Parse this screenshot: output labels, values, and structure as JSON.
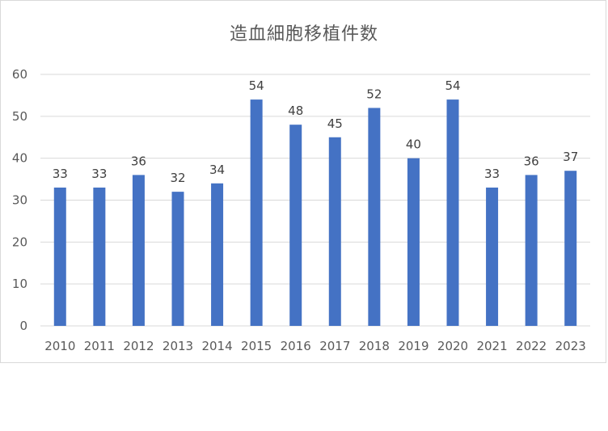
{
  "chart_data": {
    "type": "bar",
    "title": "造血細胞移植件数",
    "xlabel": "",
    "ylabel": "",
    "categories": [
      "2010",
      "2011",
      "2012",
      "2013",
      "2014",
      "2015",
      "2016",
      "2017",
      "2018",
      "2019",
      "2020",
      "2021",
      "2022",
      "2023"
    ],
    "values": [
      33,
      33,
      36,
      32,
      34,
      54,
      48,
      45,
      52,
      40,
      54,
      33,
      36,
      37
    ],
    "ylim": [
      0,
      60
    ],
    "yticks": [
      0,
      10,
      20,
      30,
      40,
      50,
      60
    ],
    "grid": true,
    "legend": "none",
    "bar_color": "#4472c4",
    "data_labels": true
  }
}
